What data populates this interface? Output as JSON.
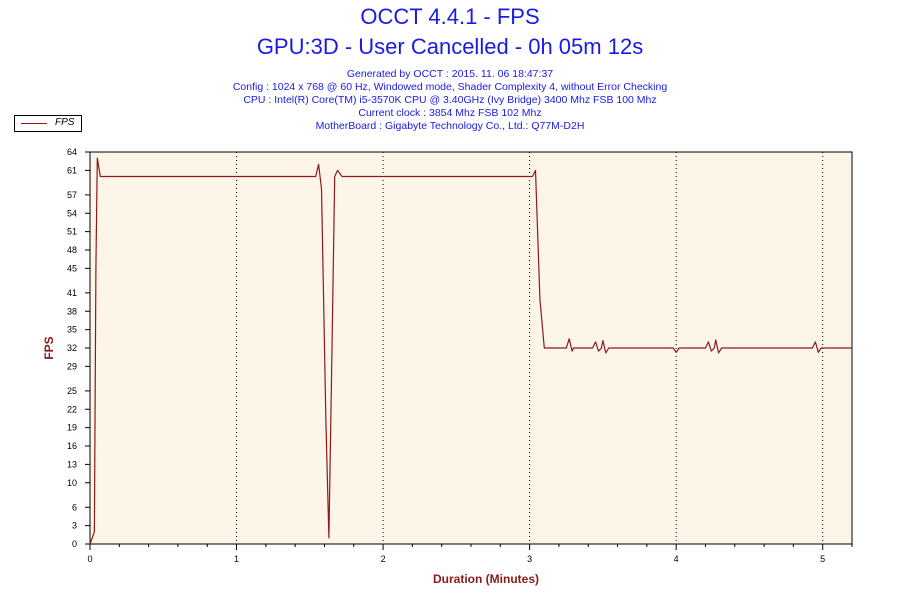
{
  "header": {
    "title_line1": "OCCT 4.4.1 - FPS",
    "title_line2": "GPU:3D - User Cancelled - 0h 05m 12s",
    "info_lines": [
      "Generated by OCCT : 2015. 11. 06 18:47:37",
      "Config : 1024 x 768 @ 60 Hz, Windowed mode, Shader Complexity 4, without Error Checking",
      "CPU : Intel(R) Core(TM) i5-3570K CPU @ 3.40GHz (Ivy Bridge) 3400 Mhz FSB 100 Mhz",
      "Current clock : 3854 Mhz FSB 102 Mhz",
      "MotherBoard : Gigabyte Technology Co., Ltd.: Q77M-D2H"
    ]
  },
  "chart_data": {
    "type": "line",
    "title": "OCCT 4.4.1 - FPS",
    "xlabel": "Duration (Minutes)",
    "ylabel": "FPS",
    "xlim": [
      0,
      5.2
    ],
    "ylim": [
      0,
      64
    ],
    "x_ticks": [
      0,
      1,
      2,
      3,
      4,
      5
    ],
    "y_ticks": [
      0,
      3,
      6,
      10,
      13,
      16,
      19,
      22,
      25,
      29,
      32,
      35,
      38,
      41,
      45,
      48,
      51,
      54,
      57,
      61,
      64
    ],
    "grid": "vertical dotted at major x ticks",
    "legend_position": "top-left",
    "colors": {
      "plot_bg": "#fdf6e8",
      "line": "#8b1a1a",
      "axis_title": "#8b1a1a",
      "title": "#1a1ae6"
    },
    "series": [
      {
        "name": "FPS",
        "points": [
          [
            0.0,
            0
          ],
          [
            0.03,
            2
          ],
          [
            0.04,
            45
          ],
          [
            0.05,
            63
          ],
          [
            0.07,
            60
          ],
          [
            0.5,
            60
          ],
          [
            1.0,
            60
          ],
          [
            1.54,
            60
          ],
          [
            1.56,
            62
          ],
          [
            1.58,
            58
          ],
          [
            1.61,
            20
          ],
          [
            1.63,
            1
          ],
          [
            1.65,
            30
          ],
          [
            1.67,
            60
          ],
          [
            1.69,
            61
          ],
          [
            1.72,
            60
          ],
          [
            2.5,
            60
          ],
          [
            3.02,
            60
          ],
          [
            3.04,
            61
          ],
          [
            3.07,
            40
          ],
          [
            3.1,
            32
          ],
          [
            3.25,
            32
          ],
          [
            3.27,
            33.5
          ],
          [
            3.29,
            31.5
          ],
          [
            3.3,
            32
          ],
          [
            3.43,
            32
          ],
          [
            3.45,
            33
          ],
          [
            3.47,
            31.5
          ],
          [
            3.49,
            32
          ],
          [
            3.5,
            33.2
          ],
          [
            3.52,
            31.2
          ],
          [
            3.54,
            32
          ],
          [
            3.7,
            32
          ],
          [
            3.9,
            32
          ],
          [
            3.98,
            32
          ],
          [
            4.0,
            31.3
          ],
          [
            4.02,
            32
          ],
          [
            4.2,
            32
          ],
          [
            4.22,
            33
          ],
          [
            4.24,
            31.5
          ],
          [
            4.26,
            32
          ],
          [
            4.27,
            33.3
          ],
          [
            4.29,
            31.2
          ],
          [
            4.31,
            32
          ],
          [
            4.6,
            32
          ],
          [
            4.8,
            32
          ],
          [
            4.93,
            32
          ],
          [
            4.95,
            33
          ],
          [
            4.97,
            31.3
          ],
          [
            4.99,
            32
          ],
          [
            5.2,
            32
          ]
        ]
      }
    ]
  }
}
